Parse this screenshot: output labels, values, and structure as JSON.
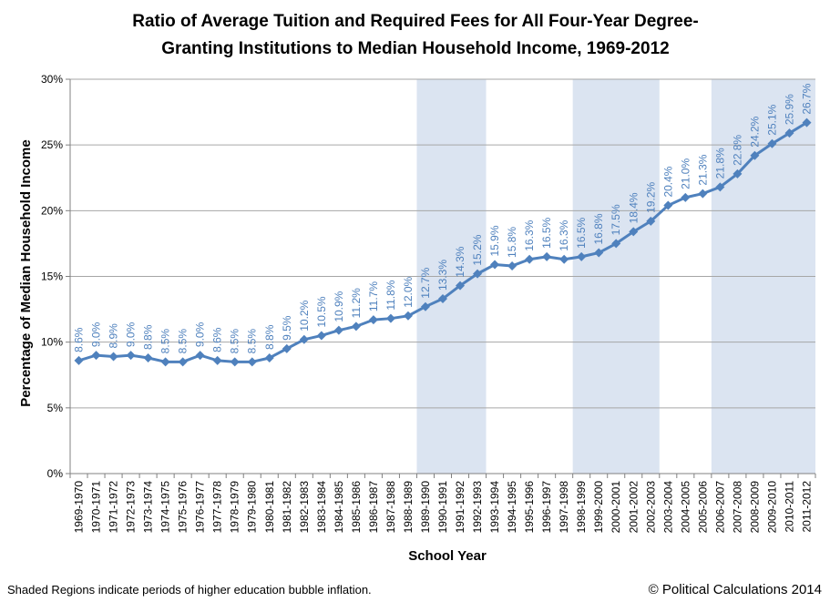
{
  "chart_data": {
    "type": "line",
    "title_line1": "Ratio of Average Tuition and Required Fees for All Four-Year Degree-",
    "title_line2": "Granting Institutions to Median Household Income, 1969-2012",
    "xlabel": "School Year",
    "ylabel": "Percentage of Median Household Income",
    "ylim": [
      0,
      30
    ],
    "y_ticks": [
      "0%",
      "5%",
      "10%",
      "15%",
      "20%",
      "25%",
      "30%"
    ],
    "grid": true,
    "categories": [
      "1969-1970",
      "1970-1971",
      "1971-1972",
      "1972-1973",
      "1973-1974",
      "1974-1975",
      "1975-1976",
      "1976-1977",
      "1977-1978",
      "1978-1979",
      "1979-1980",
      "1980-1981",
      "1981-1982",
      "1982-1983",
      "1983-1984",
      "1984-1985",
      "1985-1986",
      "1986-1987",
      "1987-1988",
      "1988-1989",
      "1989-1990",
      "1990-1991",
      "1991-1992",
      "1992-1993",
      "1993-1994",
      "1994-1995",
      "1995-1996",
      "1996-1997",
      "1997-1998",
      "1998-1999",
      "1999-2000",
      "2000-2001",
      "2001-2002",
      "2002-2003",
      "2003-2004",
      "2004-2005",
      "2005-2006",
      "2006-2007",
      "2007-2008",
      "2008-2009",
      "2009-2010",
      "2010-2011",
      "2011-2012"
    ],
    "series": [
      {
        "values": [
          8.6,
          9.0,
          8.9,
          9.0,
          8.8,
          8.5,
          8.5,
          9.0,
          8.6,
          8.5,
          8.5,
          8.8,
          9.5,
          10.2,
          10.5,
          10.9,
          11.2,
          11.7,
          11.8,
          12.0,
          12.7,
          13.3,
          14.3,
          15.2,
          15.9,
          15.8,
          16.3,
          16.5,
          16.3,
          16.5,
          16.8,
          17.5,
          18.4,
          19.2,
          20.4,
          21.0,
          21.3,
          21.8,
          22.8,
          24.2,
          25.1,
          25.9,
          26.7
        ],
        "labels": [
          "8.6%",
          "9.0%",
          "8.9%",
          "9.0%",
          "8.8%",
          "8.5%",
          "8.5%",
          "9.0%",
          "8.6%",
          "8.5%",
          "8.5%",
          "8.8%",
          "9.5%",
          "10.2%",
          "10.5%",
          "10.9%",
          "11.2%",
          "11.7%",
          "11.8%",
          "12.0%",
          "12.7%",
          "13.3%",
          "14.3%",
          "15.2%",
          "15.9%",
          "15.8%",
          "16.3%",
          "16.5%",
          "16.3%",
          "16.5%",
          "16.8%",
          "17.5%",
          "18.4%",
          "19.2%",
          "20.4%",
          "21.0%",
          "21.3%",
          "21.8%",
          "22.8%",
          "24.2%",
          "25.1%",
          "25.9%",
          "26.7%"
        ],
        "color": "#4f81bd",
        "marker": "diamond"
      }
    ],
    "shaded_regions": [
      {
        "from": "1989-1990",
        "to": "1992-1993"
      },
      {
        "from": "1998-1999",
        "to": "2002-2003"
      },
      {
        "from": "2006-2007",
        "to": "2011-2012"
      }
    ],
    "shade_color": "#dbe4f1",
    "line_color": "#4f81bd"
  },
  "footer_note": "Shaded Regions indicate periods of higher education bubble inflation.",
  "credit": "© Political Calculations 2014"
}
